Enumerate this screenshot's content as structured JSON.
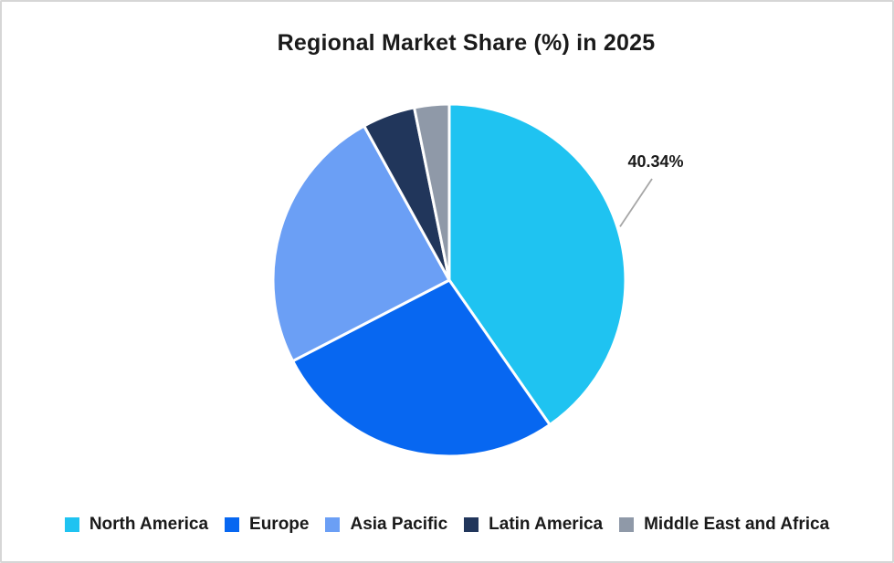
{
  "chart_data": {
    "type": "pie",
    "title": "Regional Market Share (%) in 2025",
    "categories": [
      "North America",
      "Europe",
      "Asia Pacific",
      "Latin America",
      "Middle East and Africa"
    ],
    "values": [
      40.34,
      27.06,
      24.57,
      4.84,
      3.19
    ],
    "colors": [
      "#1FC3F1",
      "#0767F1",
      "#6B9FF5",
      "#21365B",
      "#8F99A8"
    ],
    "data_labels": [
      {
        "series": "North America",
        "text": "40.34%"
      }
    ],
    "legend_position": "bottom",
    "start_angle_deg": 0,
    "direction": "clockwise",
    "separator_color": "#FFFFFF",
    "leader_line_color": "#A6A6A6",
    "text_color": "#1A1A1A",
    "background_color": "#FFFFFF",
    "frame_border_color": "#D6D6D6"
  }
}
